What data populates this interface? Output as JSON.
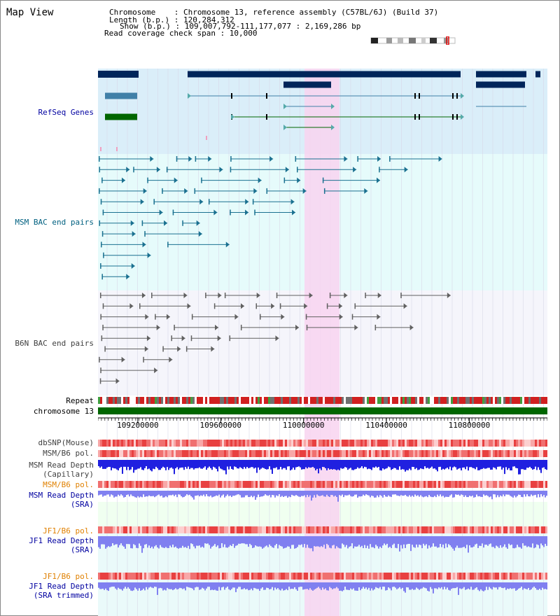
{
  "header": {
    "title": "Map View",
    "chromosome": "Chromosome    : Chromosome 13, reference assembly (C57BL/6J) (Build 37)",
    "length": "Length (b.p.) : 120,284,312",
    "show": "Show (b.p.) : 109,007,792-111,177,077 : 2,169,286 bp",
    "coverage": "Read coverage check span : 10,000"
  },
  "labels": {
    "refseq": "RefSeq Genes",
    "msm_bac": "MSM BAC end pairs",
    "b6n_bac": "B6N BAC end pairs",
    "repeat": "Repeat",
    "chromosome": "chromosome 13",
    "dbsnp": "dbSNP(Mouse)",
    "msm_b6_pol_1": "MSM/B6 pol.",
    "msm_read_depth_cap": "MSM Read Depth\n(Capillary)",
    "msm_b6_pol_2": "MSM/B6 pol.",
    "msm_read_depth_sra": "MSM Read Depth\n(SRA)",
    "jf1_b6_pol_1": "JF1/B6 pol.",
    "jf1_read_depth_sra": "JF1 Read Depth\n(SRA)",
    "jf1_b6_pol_2": "JF1/B6 pol.",
    "jf1_read_depth_trim": "JF1 Read Depth\n(SRA trimmed)"
  },
  "axis": {
    "ticks": [
      "109200000",
      "109600000",
      "110000000",
      "110400000",
      "110800000"
    ],
    "tick_values": [
      109200000,
      109600000,
      110000000,
      110400000,
      110800000
    ],
    "range": [
      109007792,
      111177077
    ]
  },
  "colors": {
    "refseq_bg": "#daeef9",
    "msm_bg": "#e6fbfb",
    "b6n_bg": "#f5f5fb",
    "highlight": "#f8d4f0",
    "msm_label": "#006080",
    "refseq_label": "#0000a0",
    "orange_label": "#e08000",
    "chrom_bar": "#006600",
    "depth_blue": "#2020e0",
    "depth_light": "#8080f0"
  }
}
